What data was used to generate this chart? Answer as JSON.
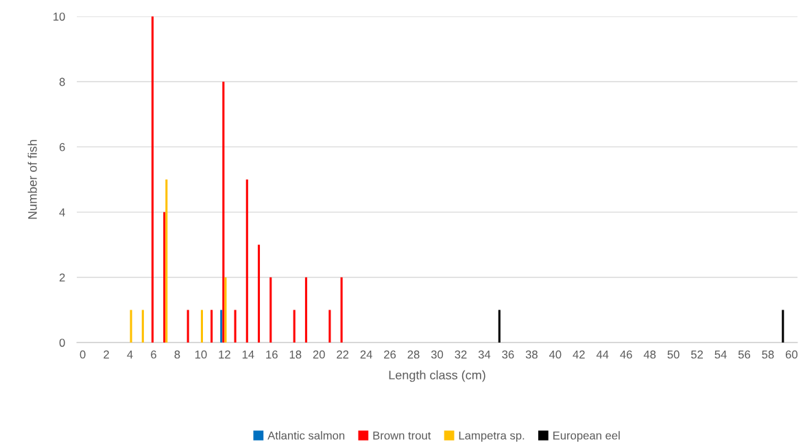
{
  "chart_data": {
    "type": "bar",
    "xlabel": "Length class (cm)",
    "ylabel": "Number of fish",
    "categories": [
      "0",
      null,
      "2",
      null,
      "4",
      null,
      "6",
      null,
      "8",
      null,
      "10",
      null,
      "12",
      null,
      "14",
      null,
      "16",
      null,
      "18",
      null,
      "20",
      null,
      "22",
      null,
      "24",
      null,
      "26",
      null,
      "28",
      null,
      "30",
      null,
      "32",
      null,
      "34",
      null,
      "36",
      null,
      "38",
      null,
      "40",
      null,
      "42",
      null,
      "44",
      null,
      "46",
      null,
      "48",
      null,
      "50",
      null,
      "52",
      null,
      "54",
      null,
      "56",
      null,
      "58",
      null,
      "60"
    ],
    "series": [
      {
        "name": "Atlantic salmon",
        "color": "#0070c0",
        "values": [
          0,
          0,
          0,
          0,
          0,
          0,
          0,
          0,
          0,
          0,
          0,
          0,
          1,
          0,
          0,
          0,
          0,
          0,
          0,
          0,
          0,
          0,
          0,
          0,
          0,
          0,
          0,
          0,
          0,
          0,
          0,
          0,
          0,
          0,
          0,
          0,
          0,
          0,
          0,
          0,
          0,
          0,
          0,
          0,
          0,
          0,
          0,
          0,
          0,
          0,
          0,
          0,
          0,
          0,
          0,
          0,
          0,
          0,
          0,
          0,
          0
        ]
      },
      {
        "name": "Brown trout",
        "color": "#ff0000",
        "values": [
          0,
          0,
          0,
          0,
          0,
          0,
          10,
          4,
          0,
          1,
          0,
          1,
          8,
          1,
          5,
          3,
          2,
          0,
          1,
          2,
          0,
          1,
          2,
          0,
          0,
          0,
          0,
          0,
          0,
          0,
          0,
          0,
          0,
          0,
          0,
          0,
          0,
          0,
          0,
          0,
          0,
          0,
          0,
          0,
          0,
          0,
          0,
          0,
          0,
          0,
          0,
          0,
          0,
          0,
          0,
          0,
          0,
          0,
          0,
          0,
          0
        ]
      },
      {
        "name": "Lampetra sp.",
        "color": "#ffc000",
        "values": [
          0,
          0,
          0,
          0,
          1,
          1,
          0,
          5,
          0,
          0,
          1,
          0,
          2,
          0,
          0,
          0,
          0,
          0,
          0,
          0,
          0,
          0,
          0,
          0,
          0,
          0,
          0,
          0,
          0,
          0,
          0,
          0,
          0,
          0,
          0,
          0,
          0,
          0,
          0,
          0,
          0,
          0,
          0,
          0,
          0,
          0,
          0,
          0,
          0,
          0,
          0,
          0,
          0,
          0,
          0,
          0,
          0,
          0,
          0,
          0,
          0
        ]
      },
      {
        "name": "European eel",
        "color": "#000000",
        "values": [
          0,
          0,
          0,
          0,
          0,
          0,
          0,
          0,
          0,
          0,
          0,
          0,
          0,
          0,
          0,
          0,
          0,
          0,
          0,
          0,
          0,
          0,
          0,
          0,
          0,
          0,
          0,
          0,
          0,
          0,
          0,
          0,
          0,
          0,
          0,
          1,
          0,
          0,
          0,
          0,
          0,
          0,
          0,
          0,
          0,
          0,
          0,
          0,
          0,
          0,
          0,
          0,
          0,
          0,
          0,
          0,
          0,
          0,
          0,
          1,
          0
        ]
      }
    ],
    "ylim": [
      0,
      10
    ],
    "yticks": [
      0,
      2,
      4,
      6,
      8,
      10
    ],
    "grid": "y",
    "legend": "bottom"
  }
}
